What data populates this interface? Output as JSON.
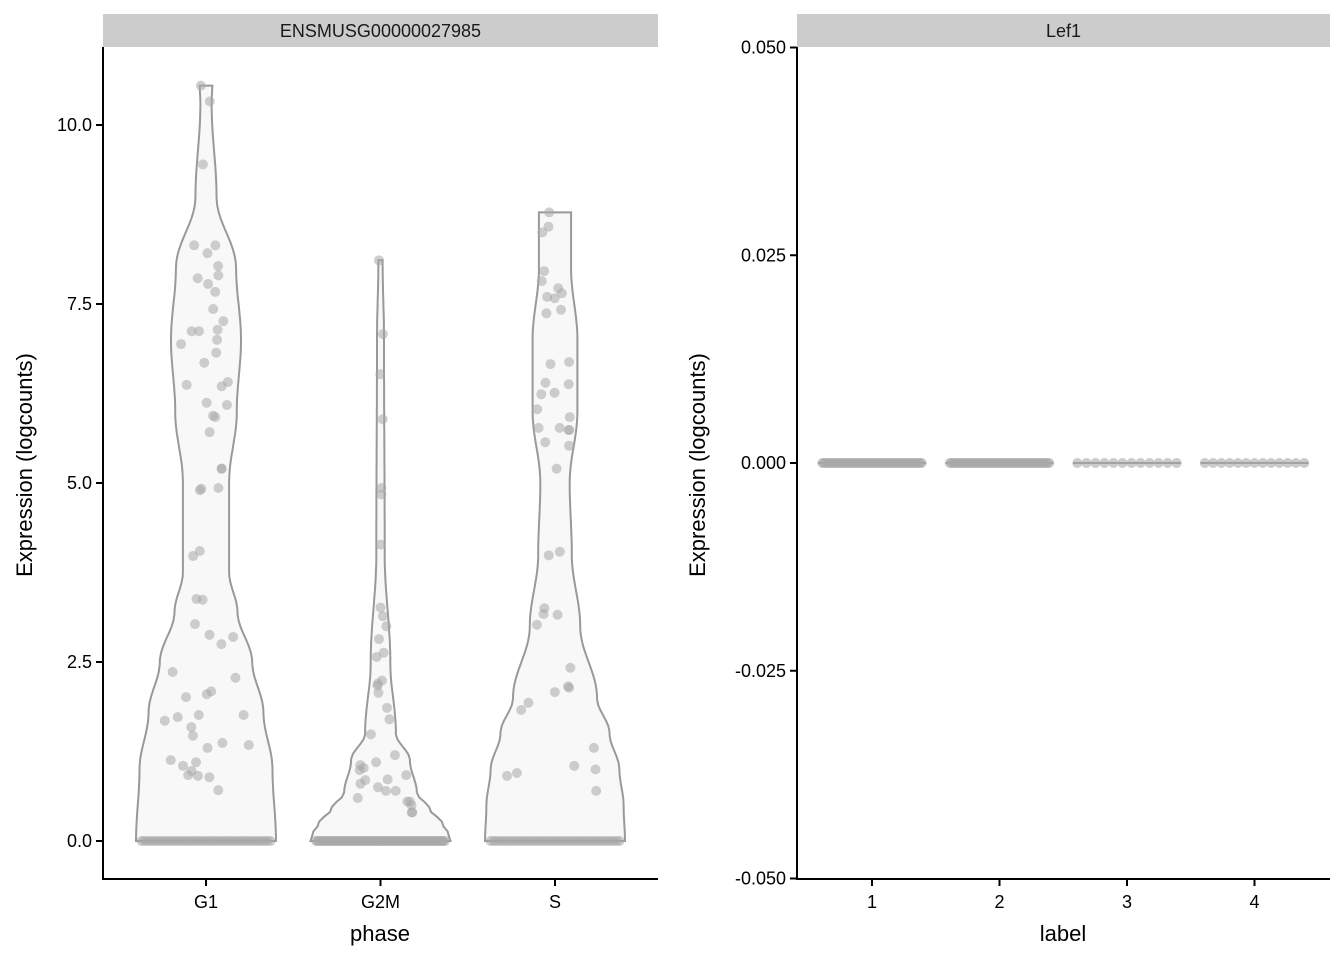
{
  "chart_data": [
    {
      "type": "violin",
      "strip_title": "ENSMUSG00000027985",
      "xlabel": "phase",
      "ylabel": "Expression (logcounts)",
      "categories": [
        "G1",
        "G2M",
        "S"
      ],
      "ylim": [
        -0.53,
        11.07
      ],
      "yticks": [
        0,
        2.5,
        5,
        7.5,
        10
      ],
      "ytick_labels": [
        "0.0",
        "2.5",
        "5.0",
        "7.5",
        "10.0"
      ],
      "grid": false,
      "colors": {
        "point": "#a8a8a8",
        "violin_fill": "#f8f8f8",
        "violin_line": "#999999",
        "strip": "#cccccc"
      },
      "groups": [
        {
          "category": "G1",
          "n_zero": 42,
          "values": [
            10.55,
            10.33,
            9.45,
            8.32,
            8.32,
            8.21,
            7.86,
            8.03,
            7.9,
            7.78,
            7.67,
            7.43,
            7.26,
            7.12,
            7.12,
            7.14,
            7.0,
            6.94,
            6.82,
            6.68,
            6.41,
            6.35,
            6.37,
            6.12,
            6.09,
            5.92,
            5.94,
            5.71,
            5.2,
            5.2,
            4.92,
            4.9,
            4.93,
            4.05,
            3.98,
            3.38,
            3.37,
            3.03,
            2.85,
            2.88,
            2.75,
            2.28,
            2.36,
            2.01,
            2.09,
            2.05,
            1.76,
            1.73,
            1.76,
            1.68,
            1.47,
            1.59,
            1.37,
            1.34,
            1.3,
            1.13,
            1.1,
            1.05,
            0.98,
            0.91,
            0.92,
            0.89,
            0.71
          ],
          "density_profile": [
            [
              0,
              1.0
            ],
            [
              1,
              0.95
            ],
            [
              1.8,
              0.82
            ],
            [
              2.5,
              0.66
            ],
            [
              3.2,
              0.45
            ],
            [
              3.75,
              0.33
            ],
            [
              5,
              0.33
            ],
            [
              6,
              0.44
            ],
            [
              7,
              0.5
            ],
            [
              8,
              0.43
            ],
            [
              9,
              0.15
            ],
            [
              10.3,
              0.08
            ],
            [
              10.55,
              0.09
            ]
          ]
        },
        {
          "category": "G2M",
          "n_zero": 80,
          "values": [
            8.11,
            7.08,
            6.52,
            5.89,
            4.93,
            4.84,
            4.14,
            3.26,
            3.14,
            3.0,
            2.82,
            2.63,
            2.57,
            2.24,
            2.2,
            2.17,
            2.07,
            1.86,
            1.7,
            1.49,
            1.2,
            1.06,
            1.1,
            1.02,
            0.99,
            0.92,
            0.85,
            0.86,
            0.8,
            0.75,
            0.7,
            0.6,
            0.55,
            0.55,
            0.4,
            0.4,
            0.5,
            0.7
          ],
          "density_profile": [
            [
              0,
              1.0
            ],
            [
              0.1,
              0.97
            ],
            [
              0.25,
              0.88
            ],
            [
              0.45,
              0.7
            ],
            [
              0.67,
              0.52
            ],
            [
              1.13,
              0.42
            ],
            [
              1.5,
              0.22
            ],
            [
              2.5,
              0.14
            ],
            [
              4,
              0.06
            ],
            [
              7,
              0.05
            ],
            [
              8.11,
              0.03
            ]
          ]
        },
        {
          "category": "S",
          "n_zero": 40,
          "values": [
            8.78,
            8.5,
            8.58,
            7.96,
            7.82,
            7.72,
            7.6,
            7.65,
            7.58,
            7.42,
            7.37,
            6.38,
            6.4,
            6.66,
            6.69,
            6.24,
            6.26,
            6.03,
            5.92,
            5.77,
            5.74,
            5.77,
            5.74,
            5.57,
            5.52,
            5.2,
            4.04,
            3.99,
            3.25,
            3.17,
            3.16,
            3.02,
            2.42,
            2.16,
            2.14,
            2.08,
            1.83,
            1.93,
            1.3,
            0.95,
            1.05,
            1.0,
            0.91,
            0.7
          ],
          "density_profile": [
            [
              0,
              1.0
            ],
            [
              0.5,
              0.98
            ],
            [
              1,
              0.92
            ],
            [
              1.5,
              0.78
            ],
            [
              2,
              0.6
            ],
            [
              3,
              0.36
            ],
            [
              4,
              0.24
            ],
            [
              5,
              0.21
            ],
            [
              6,
              0.32
            ],
            [
              7,
              0.32
            ],
            [
              8,
              0.23
            ],
            [
              8.78,
              0.23
            ]
          ]
        }
      ]
    },
    {
      "type": "violin",
      "strip_title": "Lef1",
      "xlabel": "label",
      "ylabel": "Expression (logcounts)",
      "categories": [
        "1",
        "2",
        "3",
        "4"
      ],
      "ylim": [
        -0.05,
        0.05
      ],
      "yticks": [
        -0.05,
        -0.025,
        0,
        0.025,
        0.05
      ],
      "ytick_labels": [
        "-0.050",
        "-0.025",
        "0.000",
        "0.025",
        "0.050"
      ],
      "grid": false,
      "groups": [
        {
          "category": "1",
          "n_zero": 60,
          "values": []
        },
        {
          "category": "2",
          "n_zero": 60,
          "values": []
        },
        {
          "category": "3",
          "n_zero": 12,
          "values": []
        },
        {
          "category": "4",
          "n_zero": 13,
          "values": []
        }
      ]
    }
  ]
}
